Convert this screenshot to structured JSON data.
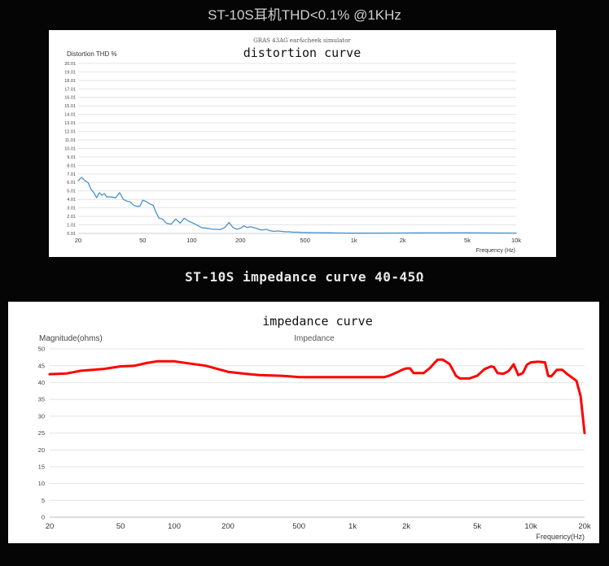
{
  "page": {
    "top_heading": "ST-10S耳机THD<0.1% @1KHz",
    "middle_heading": "ST-10S impedance curve 40-45Ω"
  },
  "chart_data": [
    {
      "type": "line",
      "source_label": "GRAS 43AG ear&cheek simulator",
      "title": "distortion curve",
      "ylabel": "Distortion THD %",
      "xlabel": "Frequency (Hz)",
      "x_scale": "log",
      "xlim": [
        20,
        10000
      ],
      "ylim": [
        0.01,
        20.01
      ],
      "y_ticks": [
        "20.01",
        "19.01",
        "18.01",
        "17.01",
        "16.01",
        "15.01",
        "14.01",
        "13.01",
        "12.01",
        "11.01",
        "10.01",
        "9.01",
        "8.01",
        "7.01",
        "6.01",
        "5.01",
        "4.01",
        "3.01",
        "2.01",
        "1.01",
        "0.01"
      ],
      "x_ticks": [
        {
          "value": 20,
          "label": "20"
        },
        {
          "value": 50,
          "label": "50"
        },
        {
          "value": 100,
          "label": "100"
        },
        {
          "value": 200,
          "label": "200"
        },
        {
          "value": 500,
          "label": "500"
        },
        {
          "value": 1000,
          "label": "1k"
        },
        {
          "value": 2000,
          "label": "2k"
        },
        {
          "value": 5000,
          "label": "5k"
        },
        {
          "value": 10000,
          "label": "10k"
        }
      ],
      "grid": true,
      "line_color": "#4a90cc",
      "series": [
        {
          "x": [
            20,
            21,
            22,
            23,
            24,
            25,
            26,
            27,
            28,
            29,
            30,
            32,
            34,
            36,
            38,
            40,
            42,
            44,
            46,
            48,
            50,
            52,
            55,
            58,
            60,
            63,
            66,
            70,
            75,
            80,
            85,
            90,
            95,
            100,
            105,
            110,
            115,
            120,
            125,
            130,
            135,
            140,
            150,
            160,
            170,
            180,
            190,
            200,
            210,
            220,
            230,
            240,
            250,
            260,
            270,
            280,
            290,
            300,
            320,
            340,
            360,
            380,
            400,
            420,
            450,
            480,
            500,
            550,
            600,
            650,
            700,
            800,
            900,
            1000,
            1200,
            1500,
            2000,
            3000,
            5000,
            7000,
            10000
          ],
          "y": [
            6.2,
            6.6,
            6.2,
            6.0,
            5.2,
            4.8,
            4.2,
            4.8,
            4.5,
            4.7,
            4.3,
            4.3,
            4.2,
            4.8,
            4.0,
            3.8,
            3.7,
            3.3,
            3.2,
            3.2,
            3.9,
            3.8,
            3.5,
            3.3,
            2.6,
            1.8,
            1.7,
            1.2,
            1.1,
            1.7,
            1.2,
            1.8,
            1.5,
            1.3,
            1.1,
            0.9,
            0.7,
            0.65,
            0.6,
            0.55,
            0.5,
            0.5,
            0.45,
            0.7,
            1.3,
            0.7,
            0.5,
            0.6,
            0.9,
            0.7,
            0.8,
            0.7,
            0.6,
            0.5,
            0.4,
            0.45,
            0.5,
            0.35,
            0.25,
            0.3,
            0.25,
            0.2,
            0.2,
            0.15,
            0.15,
            0.12,
            0.12,
            0.1,
            0.1,
            0.08,
            0.08,
            0.06,
            0.05,
            0.04,
            0.04,
            0.05,
            0.06,
            0.07,
            0.08,
            0.06,
            0.05
          ]
        }
      ]
    },
    {
      "type": "line",
      "title": "impedance curve",
      "subtitle": "Impedance",
      "ylabel": "Magnitude(ohms)",
      "xlabel": "Frequency(Hz)",
      "x_scale": "log",
      "xlim": [
        20,
        20000
      ],
      "ylim": [
        0,
        50
      ],
      "y_ticks": [
        "50",
        "45",
        "40",
        "35",
        "30",
        "25",
        "20",
        "15",
        "10",
        "5",
        "0"
      ],
      "x_ticks": [
        {
          "value": 20,
          "label": "20"
        },
        {
          "value": 50,
          "label": "50"
        },
        {
          "value": 100,
          "label": "100"
        },
        {
          "value": 200,
          "label": "200"
        },
        {
          "value": 500,
          "label": "500"
        },
        {
          "value": 1000,
          "label": "1k"
        },
        {
          "value": 2000,
          "label": "2k"
        },
        {
          "value": 5000,
          "label": "5k"
        },
        {
          "value": 10000,
          "label": "10k"
        },
        {
          "value": 20000,
          "label": "20k"
        }
      ],
      "grid": true,
      "line_color": "#ff0000",
      "series": [
        {
          "x": [
            20,
            25,
            30,
            40,
            50,
            60,
            70,
            80,
            100,
            120,
            150,
            200,
            250,
            300,
            400,
            450,
            500,
            700,
            1000,
            1500,
            1600,
            1700,
            1800,
            1900,
            2000,
            2100,
            2200,
            2500,
            2700,
            3000,
            3200,
            3500,
            3800,
            4000,
            4500,
            5000,
            5500,
            6000,
            6200,
            6500,
            7000,
            7500,
            8000,
            8500,
            9000,
            9500,
            10000,
            11000,
            12000,
            12500,
            13000,
            14000,
            15000,
            16000,
            17000,
            18000,
            19000,
            20000
          ],
          "y": [
            42.5,
            42.7,
            43.5,
            44,
            44.8,
            45,
            45.8,
            46.3,
            46.3,
            45.7,
            45,
            43.2,
            42.6,
            42.2,
            42,
            41.8,
            41.6,
            41.6,
            41.6,
            41.6,
            42,
            42.6,
            43.2,
            43.8,
            44.2,
            44.2,
            42.8,
            42.8,
            44.2,
            46.8,
            46.8,
            45.5,
            42,
            41.2,
            41.2,
            42,
            44,
            44.8,
            44.6,
            42.8,
            42.6,
            43.4,
            45.4,
            42.2,
            42.8,
            45.3,
            46,
            46.2,
            46,
            42,
            41.8,
            43.8,
            43.8,
            42.5,
            41.5,
            40.5,
            36,
            25
          ]
        }
      ]
    }
  ]
}
